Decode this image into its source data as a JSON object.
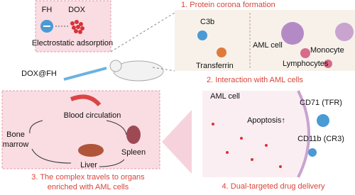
{
  "panel_adsorption": {
    "fh": "FH",
    "dox": "DOX",
    "caption": "Electrostatic adsorption",
    "complex": "DOX@FH"
  },
  "panel_interaction": {
    "step1": "1. Protein corona formation",
    "c3b": "C3b",
    "transferrin": "Transferrin",
    "aml_cell": "AML cell",
    "monocyte": "Monocyte",
    "lymphocytes": "Lymphocytes",
    "step2": "2. Interaction with AML cells"
  },
  "panel_travel": {
    "blood": "Blood circulation",
    "bone": [
      "Bone",
      "marrow"
    ],
    "spleen": "Spleen",
    "liver": "Liver",
    "step3": [
      "3. The complex travels to organs",
      "enriched with  AML cells"
    ]
  },
  "panel_delivery": {
    "aml_cell": "AML cell",
    "apoptosis": "Apoptosis↑",
    "cd71": "CD71 (TFR)",
    "cd11b": "CD11b (CR3)",
    "step4": "4. Dual-targeted drug delivery"
  }
}
